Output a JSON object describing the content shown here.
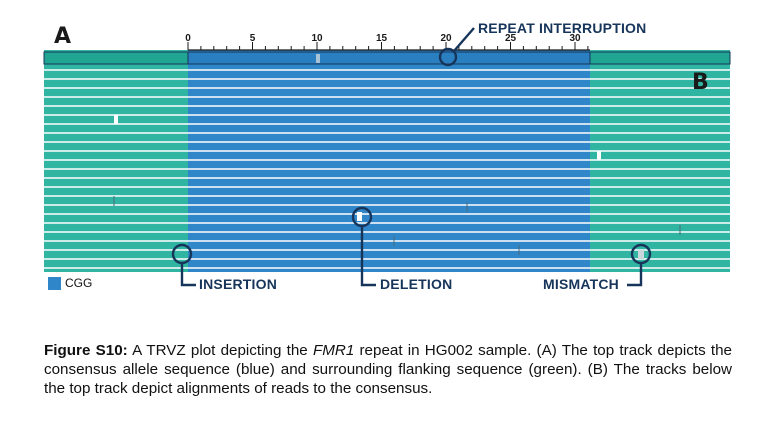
{
  "panel_labels": {
    "a": "A",
    "b": "B"
  },
  "ruler": {
    "ticks": [
      "0",
      "5",
      "10",
      "15",
      "20",
      "25",
      "30"
    ]
  },
  "annotations": {
    "repeat_interruption": "REPEAT INTERRUPTION",
    "insertion": "INSERTION",
    "deletion": "DELETION",
    "mismatch": "MISMATCH"
  },
  "legend": {
    "label": "CGG",
    "color": "#2f86c9"
  },
  "colors": {
    "flank": "#2fb5a2",
    "repeat": "#2f86c9",
    "dark": "#17355a",
    "track_dark_flank": "#1f9c8a",
    "track_dark_repeat": "#2570ad"
  },
  "caption": {
    "label": "Figure S10:",
    "text_1": " A TRVZ plot depicting the ",
    "gene": "FMR1",
    "text_2": " repeat in HG002 sample. (A) The top track depicts the consensus allele sequence (blue) and surrounding flanking sequence (green). (B) The tracks below the top track depict alignments of reads to the consensus."
  }
}
